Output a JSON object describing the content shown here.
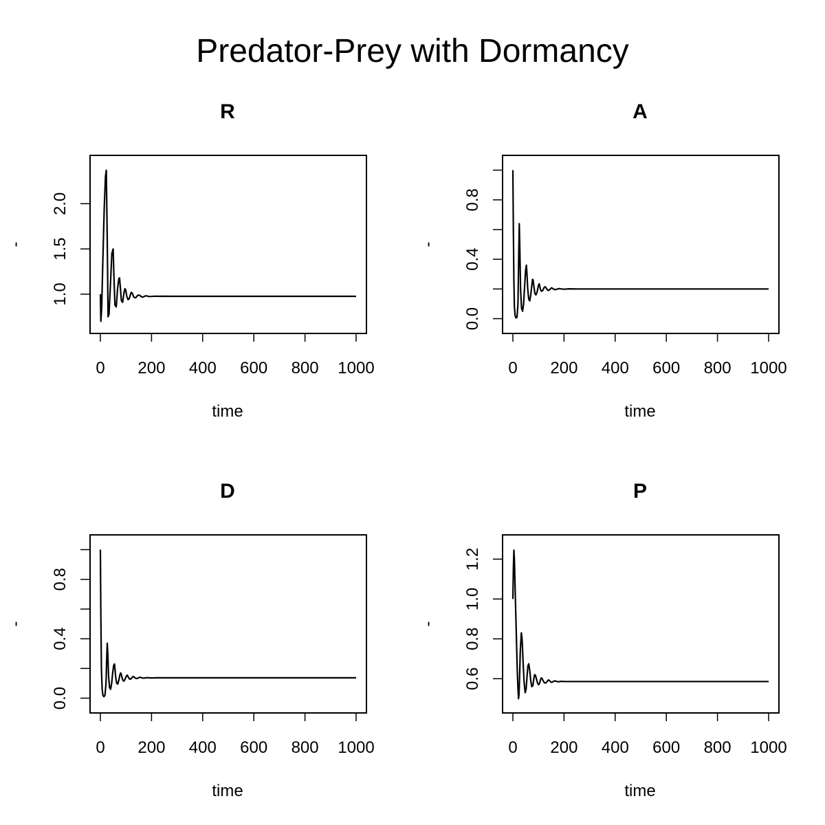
{
  "figure_title": "Predator-Prey with Dormancy",
  "chart_data": [
    {
      "type": "line",
      "title": "R",
      "xlabel": "time",
      "ylabel": "-",
      "xlim": [
        0,
        1000
      ],
      "ylim": [
        0.68,
        2.42
      ],
      "xticks": [
        0,
        200,
        400,
        600,
        800,
        1000
      ],
      "xtick_labels": [
        "0",
        "200",
        "400",
        "600",
        "800",
        "1000"
      ],
      "yticks": [
        1.0,
        1.5,
        2.0
      ],
      "ytick_labels": [
        "1.0",
        "1.5",
        "2.0"
      ],
      "series": [
        {
          "x": [
            0,
            2,
            5,
            10,
            15,
            20,
            23,
            27,
            30,
            34,
            40,
            45,
            50,
            53,
            57,
            62,
            67,
            72,
            75,
            78,
            82,
            87,
            92,
            96,
            99,
            103,
            108,
            113,
            118,
            121,
            125,
            130,
            135,
            140,
            145,
            150,
            155,
            160,
            165,
            170,
            175,
            180,
            190,
            200,
            215,
            230,
            250,
            280,
            350,
            500,
            700,
            1000
          ],
          "y": [
            1.0,
            0.7,
            0.85,
            1.4,
            1.95,
            2.3,
            2.37,
            1.6,
            0.75,
            0.78,
            1.15,
            1.45,
            1.5,
            1.2,
            0.88,
            0.86,
            1.05,
            1.17,
            1.18,
            1.08,
            0.93,
            0.91,
            1.01,
            1.06,
            1.05,
            0.98,
            0.94,
            0.95,
            1.0,
            1.02,
            1.01,
            0.97,
            0.96,
            0.965,
            0.985,
            0.99,
            0.985,
            0.972,
            0.968,
            0.972,
            0.98,
            0.982,
            0.974,
            0.975,
            0.978,
            0.976,
            0.977,
            0.976,
            0.976,
            0.976,
            0.976,
            0.976
          ]
        }
      ]
    },
    {
      "type": "line",
      "title": "A",
      "xlabel": "time",
      "ylabel": "-",
      "xlim": [
        0,
        1000
      ],
      "ylim": [
        -0.03,
        1.03
      ],
      "xticks": [
        0,
        200,
        400,
        600,
        800,
        1000
      ],
      "xtick_labels": [
        "0",
        "200",
        "400",
        "600",
        "800",
        "1000"
      ],
      "yticks": [
        0.0,
        0.2,
        0.4,
        0.6,
        0.8,
        1.0
      ],
      "ytick_labels": [
        "0.0",
        "",
        "0.4",
        "",
        "0.8",
        ""
      ],
      "series": [
        {
          "x": [
            0,
            2,
            4,
            6,
            9,
            12,
            16,
            20,
            23,
            25,
            27,
            30,
            34,
            38,
            42,
            46,
            50,
            53,
            55,
            58,
            62,
            66,
            70,
            74,
            77,
            79,
            82,
            86,
            90,
            95,
            100,
            103,
            105,
            108,
            112,
            117,
            122,
            126,
            128,
            132,
            138,
            144,
            149,
            152,
            158,
            165,
            172,
            180,
            190,
            200,
            220,
            250,
            300,
            400,
            600,
            1000
          ],
          "y": [
            1.0,
            0.6,
            0.25,
            0.08,
            0.02,
            0.005,
            0.01,
            0.1,
            0.45,
            0.64,
            0.5,
            0.2,
            0.07,
            0.05,
            0.1,
            0.22,
            0.33,
            0.36,
            0.3,
            0.2,
            0.13,
            0.12,
            0.16,
            0.22,
            0.265,
            0.26,
            0.22,
            0.17,
            0.16,
            0.18,
            0.225,
            0.235,
            0.22,
            0.195,
            0.185,
            0.19,
            0.21,
            0.215,
            0.212,
            0.2,
            0.19,
            0.195,
            0.205,
            0.208,
            0.2,
            0.195,
            0.198,
            0.203,
            0.2,
            0.198,
            0.201,
            0.2,
            0.2,
            0.2,
            0.2,
            0.2
          ]
        }
      ]
    },
    {
      "type": "line",
      "title": "D",
      "xlabel": "time",
      "ylabel": "-",
      "xlim": [
        0,
        1000
      ],
      "ylim": [
        -0.03,
        1.03
      ],
      "xticks": [
        0,
        200,
        400,
        600,
        800,
        1000
      ],
      "xtick_labels": [
        "0",
        "200",
        "400",
        "600",
        "800",
        "1000"
      ],
      "yticks": [
        0.0,
        0.2,
        0.4,
        0.6,
        0.8,
        1.0
      ],
      "ytick_labels": [
        "0.0",
        "",
        "0.4",
        "",
        "0.8",
        ""
      ],
      "series": [
        {
          "x": [
            0,
            2,
            4,
            7,
            10,
            14,
            18,
            22,
            25,
            27,
            29,
            32,
            36,
            40,
            44,
            48,
            52,
            55,
            57,
            60,
            64,
            68,
            72,
            76,
            79,
            81,
            84,
            88,
            92,
            97,
            102,
            105,
            107,
            110,
            115,
            120,
            125,
            129,
            131,
            136,
            142,
            148,
            153,
            156,
            162,
            170,
            180,
            190,
            200,
            220,
            250,
            300,
            400,
            600,
            1000
          ],
          "y": [
            1.0,
            0.55,
            0.2,
            0.06,
            0.02,
            0.01,
            0.02,
            0.1,
            0.28,
            0.37,
            0.3,
            0.15,
            0.07,
            0.06,
            0.1,
            0.17,
            0.22,
            0.23,
            0.2,
            0.14,
            0.1,
            0.095,
            0.12,
            0.155,
            0.17,
            0.165,
            0.145,
            0.12,
            0.115,
            0.13,
            0.15,
            0.155,
            0.15,
            0.138,
            0.128,
            0.13,
            0.142,
            0.146,
            0.144,
            0.136,
            0.132,
            0.136,
            0.14,
            0.141,
            0.137,
            0.135,
            0.138,
            0.137,
            0.136,
            0.137,
            0.137,
            0.137,
            0.137,
            0.137,
            0.137
          ]
        }
      ]
    },
    {
      "type": "line",
      "title": "P",
      "xlabel": "time",
      "ylabel": "-",
      "xlim": [
        0,
        1000
      ],
      "ylim": [
        0.48,
        1.27
      ],
      "xticks": [
        0,
        200,
        400,
        600,
        800,
        1000
      ],
      "xtick_labels": [
        "0",
        "200",
        "400",
        "600",
        "800",
        "1000"
      ],
      "yticks": [
        0.6,
        0.8,
        1.0,
        1.2
      ],
      "ytick_labels": [
        "0.6",
        "0.8",
        "1.0",
        "1.2"
      ],
      "series": [
        {
          "x": [
            0,
            2,
            4,
            6,
            9,
            13,
            17,
            20,
            22,
            24,
            26,
            29,
            33,
            36,
            40,
            44,
            48,
            52,
            56,
            59,
            62,
            66,
            70,
            74,
            78,
            82,
            85,
            88,
            92,
            96,
            100,
            104,
            108,
            111,
            114,
            118,
            123,
            128,
            133,
            137,
            140,
            145,
            150,
            155,
            160,
            165,
            172,
            180,
            190,
            200,
            220,
            250,
            300,
            400,
            600,
            1000
          ],
          "y": [
            1.0,
            1.15,
            1.245,
            1.2,
            1.05,
            0.85,
            0.65,
            0.55,
            0.5,
            0.52,
            0.6,
            0.74,
            0.83,
            0.8,
            0.68,
            0.58,
            0.53,
            0.55,
            0.62,
            0.665,
            0.675,
            0.64,
            0.59,
            0.56,
            0.565,
            0.6,
            0.62,
            0.618,
            0.6,
            0.58,
            0.57,
            0.575,
            0.595,
            0.604,
            0.602,
            0.59,
            0.58,
            0.578,
            0.585,
            0.592,
            0.594,
            0.588,
            0.582,
            0.583,
            0.588,
            0.589,
            0.586,
            0.585,
            0.587,
            0.586,
            0.586,
            0.586,
            0.586,
            0.586,
            0.586,
            0.586
          ]
        }
      ]
    }
  ]
}
